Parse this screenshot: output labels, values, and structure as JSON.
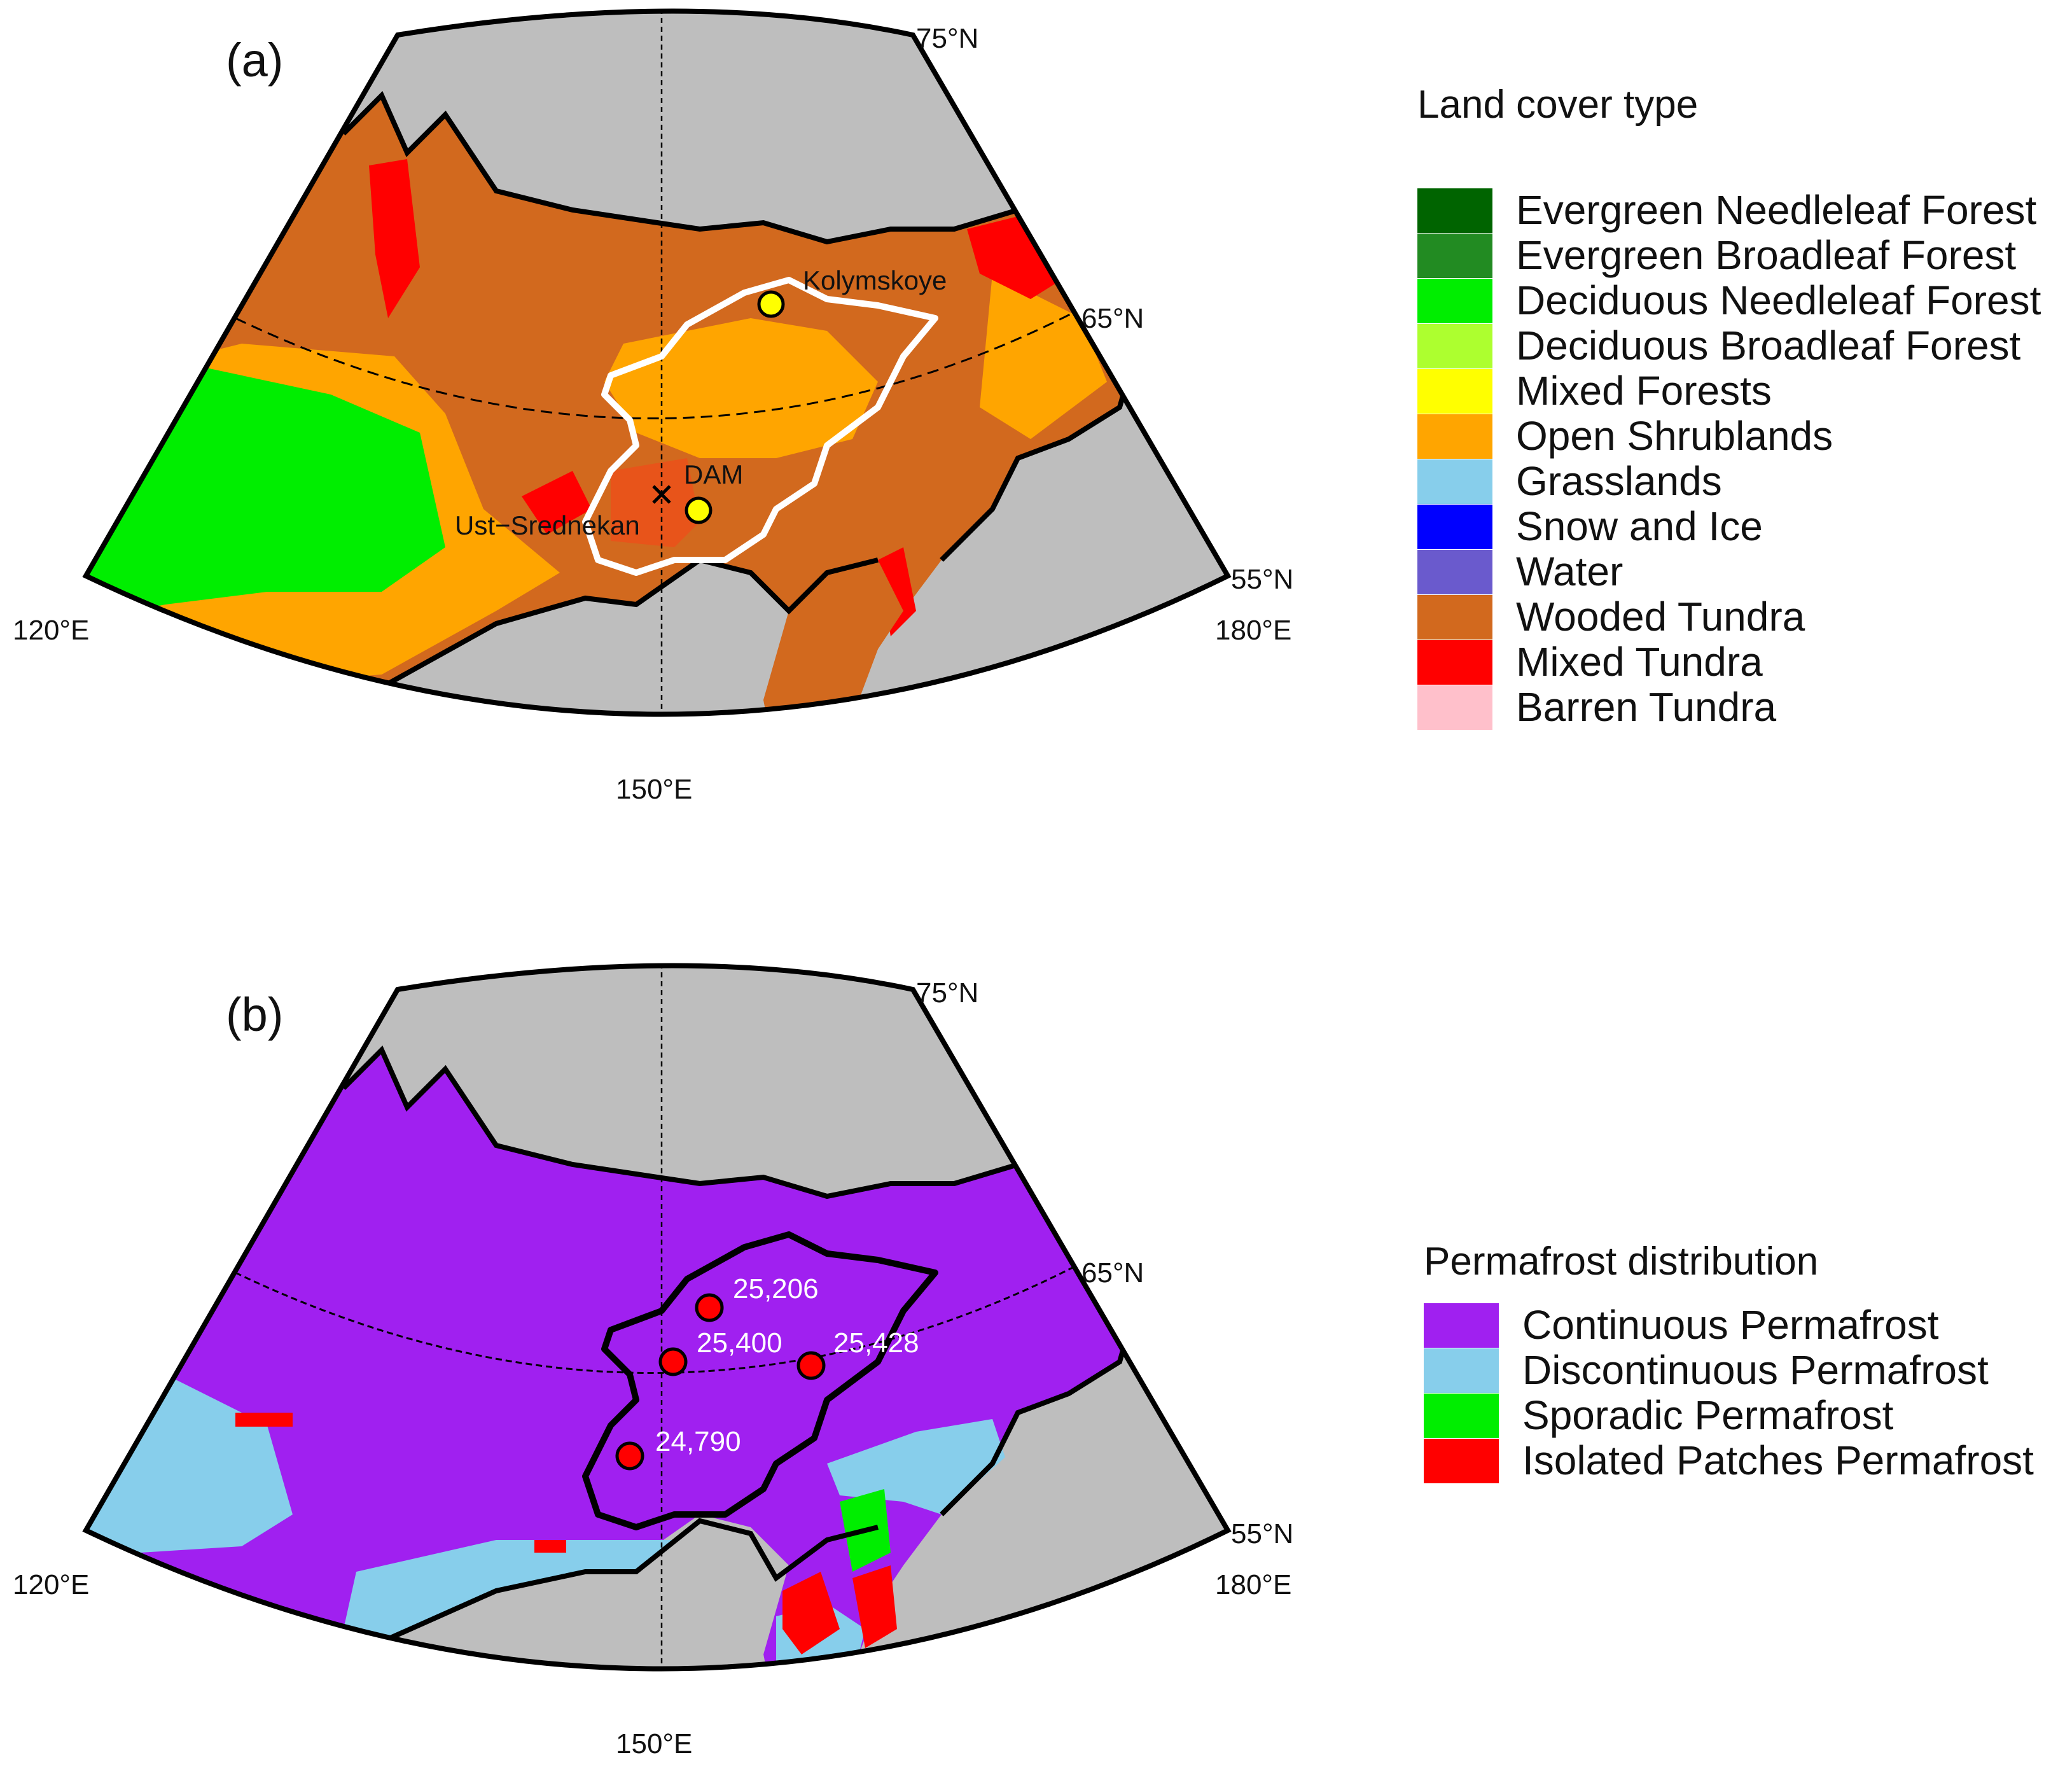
{
  "panels": [
    {
      "id": "a",
      "tag": "(a)",
      "lat_labels": [
        "75°N",
        "65°N",
        "55°N"
      ],
      "lon_labels": [
        "120°E",
        "150°E",
        "180°E"
      ],
      "sites": [
        {
          "name": "Kolymskoye",
          "marker": "circle"
        },
        {
          "name": "DAM",
          "marker": "circle"
        },
        {
          "name": "Ust−Srednekan",
          "marker": "cross"
        }
      ],
      "legend": {
        "title": "Land cover type",
        "items": [
          {
            "label": "Evergreen Needleleaf Forest",
            "color": "#006400"
          },
          {
            "label": "Evergreen Broadleaf Forest",
            "color": "#228B22"
          },
          {
            "label": "Deciduous Needleleaf Forest",
            "color": "#00EE00"
          },
          {
            "label": "Deciduous Broadleaf Forest",
            "color": "#ADFF2F"
          },
          {
            "label": "Mixed Forests",
            "color": "#FFFF00"
          },
          {
            "label": "Open Shrublands",
            "color": "#FFA500"
          },
          {
            "label": "Grasslands",
            "color": "#87CEEB"
          },
          {
            "label": "Snow and Ice",
            "color": "#0000FF"
          },
          {
            "label": "Water",
            "color": "#6A5ACD"
          },
          {
            "label": "Wooded Tundra",
            "color": "#D2691E"
          },
          {
            "label": "Mixed Tundra",
            "color": "#FF0000"
          },
          {
            "label": "Barren Tundra",
            "color": "#FFC0CB"
          }
        ]
      }
    },
    {
      "id": "b",
      "tag": "(b)",
      "lat_labels": [
        "75°N",
        "65°N",
        "55°N"
      ],
      "lon_labels": [
        "120°E",
        "150°E",
        "180°E"
      ],
      "stations": [
        {
          "label": "25,206"
        },
        {
          "label": "25,400"
        },
        {
          "label": "25,428"
        },
        {
          "label": "24,790"
        }
      ],
      "legend": {
        "title": "Permafrost distribution",
        "items": [
          {
            "label": "Continuous Permafrost",
            "color": "#A020F0"
          },
          {
            "label": "Discontinuous Permafrost",
            "color": "#87CEEB"
          },
          {
            "label": "Sporadic Permafrost",
            "color": "#00EE00"
          },
          {
            "label": "Isolated Patches Permafrost",
            "color": "#FF0000"
          }
        ]
      }
    }
  ],
  "colors": {
    "ocean": "#BEBEBE",
    "basin_a": "#FFFFFF",
    "basin_b": "#000000",
    "site_marker": "#FFFF00",
    "station_marker": "#FF0000"
  }
}
